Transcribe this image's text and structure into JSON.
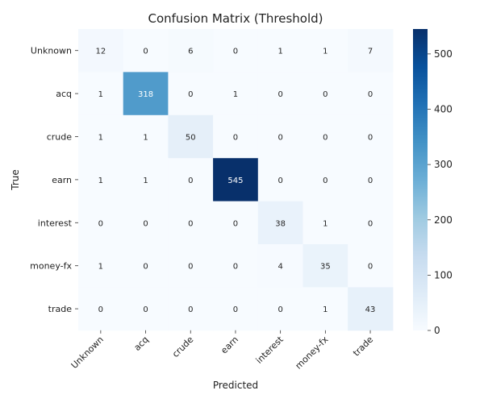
{
  "chart_data": {
    "type": "heatmap",
    "title": "Confusion Matrix (Threshold)",
    "xlabel": "Predicted",
    "ylabel": "True",
    "x_categories": [
      "Unknown",
      "acq",
      "crude",
      "earn",
      "interest",
      "money-fx",
      "trade"
    ],
    "y_categories": [
      "Unknown",
      "acq",
      "crude",
      "earn",
      "interest",
      "money-fx",
      "trade"
    ],
    "values": [
      [
        12,
        0,
        6,
        0,
        1,
        1,
        7
      ],
      [
        1,
        318,
        0,
        1,
        0,
        0,
        0
      ],
      [
        1,
        1,
        50,
        0,
        0,
        0,
        0
      ],
      [
        1,
        1,
        0,
        545,
        0,
        0,
        0
      ],
      [
        0,
        0,
        0,
        0,
        38,
        1,
        0
      ],
      [
        1,
        0,
        0,
        0,
        4,
        35,
        0
      ],
      [
        0,
        0,
        0,
        0,
        0,
        1,
        43
      ]
    ],
    "colorbar": {
      "min": 0,
      "max": 545,
      "ticks": [
        0,
        100,
        200,
        300,
        400,
        500
      ]
    },
    "colormap": "Blues"
  }
}
